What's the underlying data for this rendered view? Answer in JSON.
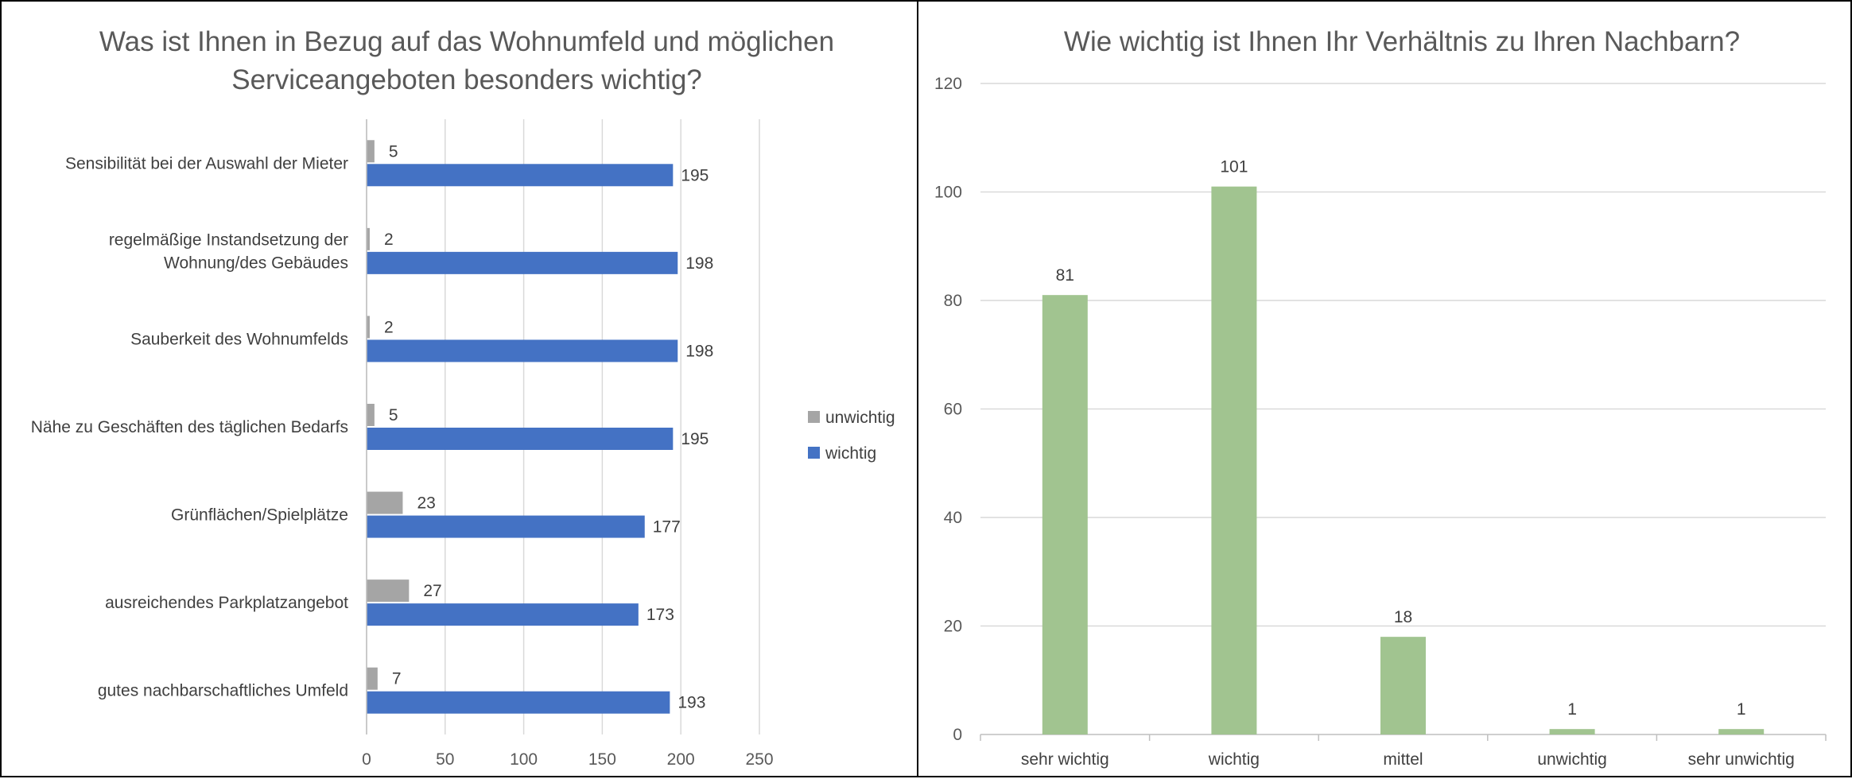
{
  "chart_data": [
    {
      "type": "bar",
      "orientation": "horizontal",
      "title_lines": [
        "Was ist Ihnen in Bezug auf das Wohnumfeld und möglichen",
        "Serviceangeboten besonders wichtig?"
      ],
      "categories": [
        [
          "Sensibilität bei der Auswahl der Mieter"
        ],
        [
          "regelmäßige Instandsetzung der",
          "Wohnung/des Gebäudes"
        ],
        [
          "Sauberkeit des Wohnumfelds"
        ],
        [
          "Nähe zu Geschäften des täglichen Bedarfs"
        ],
        [
          "Grünflächen/Spielplätze"
        ],
        [
          "ausreichendes Parkplatzangebot"
        ],
        [
          "gutes nachbarschaftliches Umfeld"
        ]
      ],
      "series": [
        {
          "name": "unwichtig",
          "color": "#a5a5a5",
          "values": [
            5,
            2,
            2,
            5,
            23,
            27,
            7
          ]
        },
        {
          "name": "wichtig",
          "color": "#4472c4",
          "values": [
            195,
            198,
            198,
            195,
            177,
            173,
            193
          ]
        }
      ],
      "xlim": [
        0,
        250
      ],
      "xticks": [
        0,
        50,
        100,
        150,
        200,
        250
      ],
      "grid": true,
      "legend_position": "right"
    },
    {
      "type": "bar",
      "orientation": "vertical",
      "title": "Wie wichtig ist Ihnen Ihr Verhältnis zu Ihren Nachbarn?",
      "categories": [
        "sehr wichtig",
        "wichtig",
        "mittel",
        "unwichtig",
        "sehr unwichtig"
      ],
      "values": [
        81,
        101,
        18,
        1,
        1
      ],
      "color": "#a1c490",
      "ylim": [
        0,
        120
      ],
      "yticks": [
        0,
        20,
        40,
        60,
        80,
        100,
        120
      ],
      "grid": true
    }
  ]
}
